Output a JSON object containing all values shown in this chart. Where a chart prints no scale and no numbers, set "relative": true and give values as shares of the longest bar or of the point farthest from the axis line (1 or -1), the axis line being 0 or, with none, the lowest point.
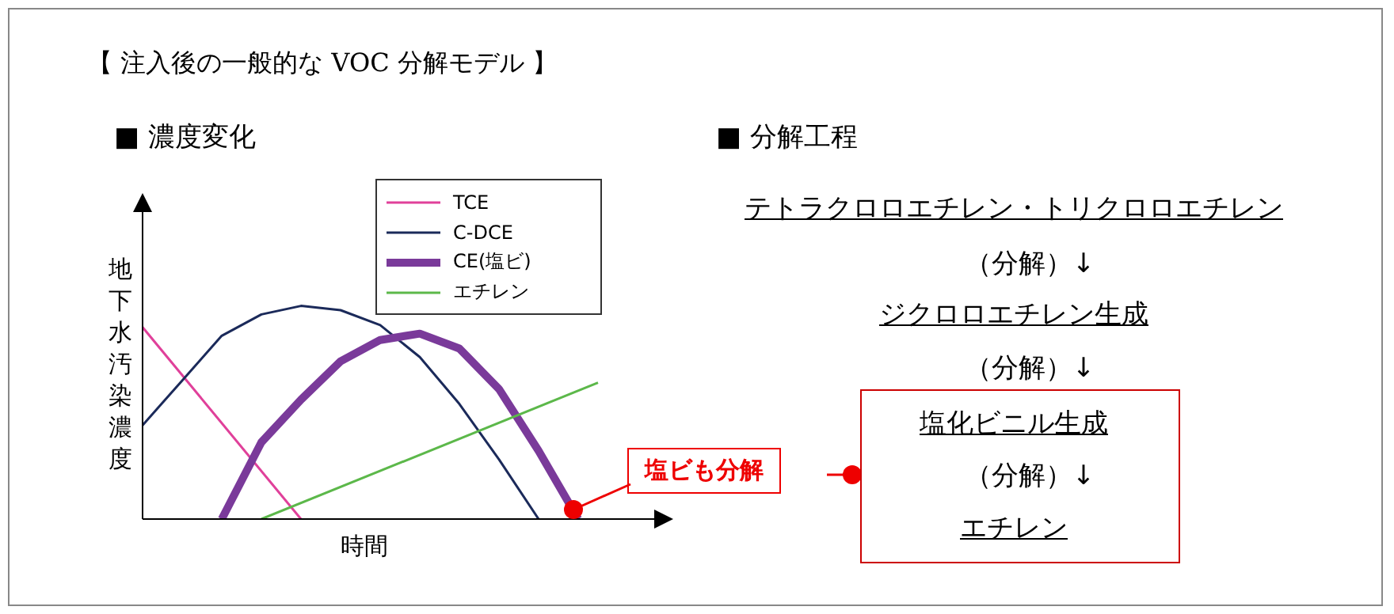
{
  "chart_data": {
    "type": "line",
    "title": "【 注入後の一般的な VOC 分解モデル 】",
    "subtitle": "■ 濃度変化",
    "xlabel": "時間",
    "ylabel": "地下水汚染濃度",
    "relative": true,
    "legend": "top right",
    "marker": "none",
    "line_style": "solid",
    "grid": false,
    "categories": [
      null,
      null,
      null,
      null,
      null,
      null,
      null,
      null,
      null,
      null,
      null,
      null,
      null,
      null,
      null,
      null,
      null,
      null,
      null,
      null,
      null,
      null,
      null,
      null,
      null,
      null
    ],
    "series": [
      {
        "name": "TCE",
        "color": "#e0409a",
        "values": [
          0.9,
          null,
          null,
          null,
          null,
          null,
          null,
          null,
          0,
          null,
          null,
          null,
          null,
          null,
          null,
          null,
          null,
          null,
          null,
          null,
          null,
          null,
          null,
          null,
          null,
          null
        ]
      },
      {
        "name": "C-DCE",
        "color": "#1b2a5a",
        "values": [
          0.44,
          null,
          0.65,
          null,
          0.86,
          null,
          0.96,
          null,
          1,
          null,
          0.98,
          null,
          0.91,
          null,
          0.76,
          null,
          0.54,
          null,
          0.28,
          null,
          0,
          null,
          null,
          null,
          null,
          null
        ]
      },
      {
        "name": "CE(塩ビ)",
        "color": "#7a3a9a",
        "values": [
          null,
          null,
          null,
          null,
          0,
          null,
          0.36,
          null,
          0.56,
          null,
          0.74,
          null,
          0.84,
          null,
          0.87,
          null,
          0.8,
          null,
          0.61,
          null,
          0.32,
          null,
          0,
          null,
          null,
          null
        ]
      },
      {
        "name": "エチレン",
        "color": "#5cb84a",
        "values": [
          null,
          null,
          null,
          null,
          null,
          null,
          0,
          null,
          null,
          null,
          null,
          null,
          null,
          null,
          null,
          null,
          null,
          null,
          null,
          null,
          null,
          null,
          null,
          0.64,
          null,
          null
        ]
      }
    ],
    "annotations": [
      "塩ビも分解",
      "■ 分解工程",
      "テトラクロロエチレン・トリクロロエチレン",
      "（分解）↓",
      "ジクロロエチレン生成",
      "（分解）↓",
      "塩化ビニル生成",
      "（分解）↓",
      "エチレン"
    ]
  }
}
